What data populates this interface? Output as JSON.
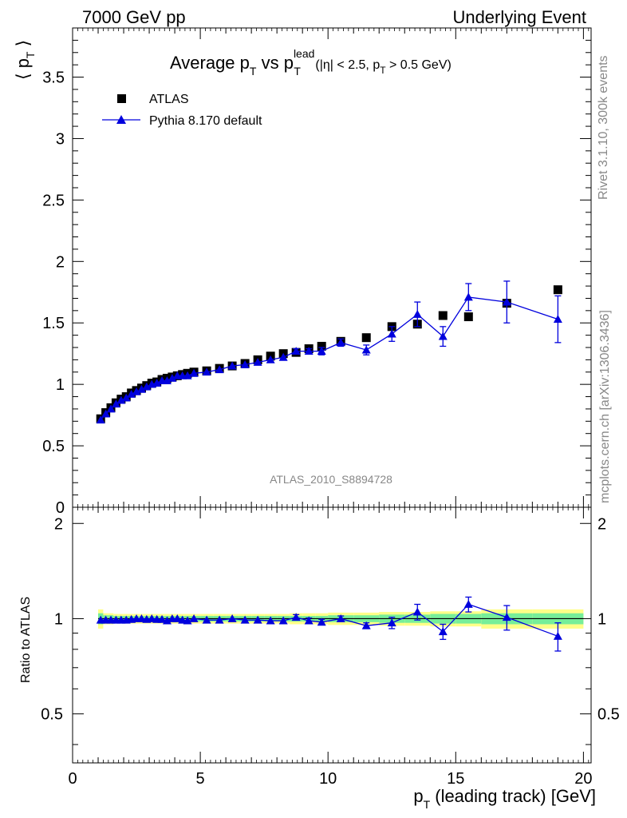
{
  "header": {
    "left": "7000 GeV pp",
    "right": "Underlying Event"
  },
  "side": {
    "rivet": "Rivet 3.1.10,  300k events",
    "source": "mcplots.cern.ch [arXiv:1306.3436]"
  },
  "main": {
    "title_prefix": "Average p",
    "title_sub1": "T",
    "title_mid": " vs p",
    "title_sub2": "T",
    "title_sup": "lead",
    "title_paren_a": " (|η| < 2.5, p",
    "title_paren_sub": "T",
    "title_paren_b": " > 0.5 GeV)",
    "ylabel_a": "⟨ p",
    "ylabel_sub": "T",
    "ylabel_b": " ⟩",
    "watermark": "ATLAS_2010_S8894728",
    "legend": {
      "data_label": "ATLAS",
      "mc_label": "Pythia 8.170 default"
    }
  },
  "ratio": {
    "ylabel": "Ratio to ATLAS"
  },
  "xaxis": {
    "label_a": "p",
    "label_sub": "T",
    "label_b": " (leading track) [GeV]"
  },
  "colors": {
    "data": "#000000",
    "mc": "#0000dd",
    "band_inner": "#77ee99",
    "band_outer": "#ffff88"
  },
  "chart_data": [
    {
      "type": "scatter",
      "xlim": [
        0,
        20.3
      ],
      "ylim": [
        0,
        3.9
      ],
      "x_ticks": [
        0,
        5,
        10,
        15,
        20
      ],
      "y_ticks": [
        0,
        0.5,
        1,
        1.5,
        2,
        2.5,
        3,
        3.5
      ],
      "y_tick_labels": [
        "0",
        "0.5",
        "1",
        "1.5",
        "2",
        "2.5",
        "3",
        "3.5"
      ],
      "series": [
        {
          "name": "ATLAS",
          "x": [
            1.1,
            1.3,
            1.5,
            1.7,
            1.9,
            2.1,
            2.3,
            2.5,
            2.7,
            2.9,
            3.1,
            3.3,
            3.5,
            3.7,
            3.9,
            4.1,
            4.3,
            4.5,
            4.75,
            5.25,
            5.75,
            6.25,
            6.75,
            7.25,
            7.75,
            8.25,
            8.75,
            9.25,
            9.75,
            10.5,
            11.5,
            12.5,
            13.5,
            14.5,
            15.5,
            17.0,
            19.0
          ],
          "y": [
            0.72,
            0.77,
            0.81,
            0.85,
            0.88,
            0.9,
            0.93,
            0.95,
            0.97,
            0.99,
            1.01,
            1.02,
            1.04,
            1.05,
            1.06,
            1.07,
            1.08,
            1.09,
            1.1,
            1.11,
            1.13,
            1.15,
            1.17,
            1.2,
            1.23,
            1.25,
            1.26,
            1.29,
            1.31,
            1.35,
            1.38,
            1.47,
            1.49,
            1.56,
            1.55,
            1.66,
            1.77
          ]
        },
        {
          "name": "Pythia 8.170 default",
          "x": [
            1.1,
            1.3,
            1.5,
            1.7,
            1.9,
            2.1,
            2.3,
            2.5,
            2.7,
            2.9,
            3.1,
            3.3,
            3.5,
            3.7,
            3.9,
            4.1,
            4.3,
            4.5,
            4.75,
            5.25,
            5.75,
            6.25,
            6.75,
            7.25,
            7.75,
            8.25,
            8.75,
            9.25,
            9.75,
            10.5,
            11.5,
            12.5,
            13.5,
            14.5,
            15.5,
            17.0,
            19.0
          ],
          "y": [
            0.71,
            0.76,
            0.8,
            0.84,
            0.87,
            0.89,
            0.92,
            0.94,
            0.96,
            0.98,
            1.0,
            1.01,
            1.03,
            1.03,
            1.05,
            1.07,
            1.07,
            1.07,
            1.09,
            1.1,
            1.12,
            1.15,
            1.16,
            1.18,
            1.2,
            1.22,
            1.27,
            1.27,
            1.27,
            1.34,
            1.28,
            1.41,
            1.57,
            1.39,
            1.71,
            1.67,
            1.53
          ],
          "yerr": [
            0,
            0,
            0,
            0,
            0,
            0,
            0,
            0,
            0,
            0,
            0,
            0,
            0,
            0,
            0,
            0,
            0,
            0,
            0,
            0,
            0,
            0,
            0,
            0,
            0,
            0,
            0.02,
            0.02,
            0.03,
            0.03,
            0.04,
            0.06,
            0.1,
            0.08,
            0.11,
            0.17,
            0.19
          ]
        }
      ]
    },
    {
      "type": "scatter",
      "xlim": [
        0,
        20.3
      ],
      "ylim": [
        0.35,
        2.25
      ],
      "x_ticks": [
        0,
        5,
        10,
        15,
        20
      ],
      "y_ticks": [
        0.5,
        1,
        2
      ],
      "y_tick_labels": [
        "0.5",
        "1",
        "2"
      ],
      "log_y": true,
      "series": [
        {
          "name": "Pythia 8.170 default",
          "x": [
            1.1,
            1.3,
            1.5,
            1.7,
            1.9,
            2.1,
            2.3,
            2.5,
            2.7,
            2.9,
            3.1,
            3.3,
            3.5,
            3.7,
            3.9,
            4.1,
            4.3,
            4.5,
            4.75,
            5.25,
            5.75,
            6.25,
            6.75,
            7.25,
            7.75,
            8.25,
            8.75,
            9.25,
            9.75,
            10.5,
            11.5,
            12.5,
            13.5,
            14.5,
            15.5,
            17.0,
            19.0
          ],
          "y": [
            0.99,
            0.99,
            0.99,
            0.99,
            0.99,
            0.99,
            0.995,
            1.0,
            1.0,
            0.995,
            1.0,
            0.995,
            0.995,
            0.985,
            1.0,
            1.0,
            0.99,
            0.985,
            1.0,
            0.99,
            0.99,
            1.0,
            0.99,
            0.99,
            0.985,
            0.985,
            1.01,
            0.985,
            0.975,
            1.0,
            0.95,
            0.97,
            1.05,
            0.91,
            1.11,
            1.01,
            0.88
          ],
          "yerr": [
            0,
            0,
            0,
            0,
            0,
            0,
            0,
            0,
            0,
            0,
            0,
            0,
            0,
            0,
            0,
            0,
            0,
            0,
            0,
            0,
            0,
            0,
            0,
            0,
            0,
            0,
            0.02,
            0.02,
            0.02,
            0.02,
            0.02,
            0.04,
            0.06,
            0.05,
            0.06,
            0.09,
            0.09
          ]
        }
      ],
      "band_x_edges": [
        1.0,
        1.2,
        1.4,
        1.6,
        1.8,
        2.0,
        2.2,
        2.4,
        2.6,
        2.8,
        3.0,
        3.2,
        3.4,
        3.6,
        3.8,
        4.0,
        4.2,
        4.4,
        4.6,
        5.0,
        5.5,
        6.0,
        6.5,
        7.0,
        7.5,
        8.0,
        8.5,
        9.0,
        9.5,
        10.0,
        11.0,
        12.0,
        13.0,
        14.0,
        15.0,
        16.0,
        18.0,
        20.0
      ],
      "band_inner": [
        0.04,
        0.025,
        0.025,
        0.02,
        0.02,
        0.02,
        0.02,
        0.02,
        0.02,
        0.02,
        0.02,
        0.02,
        0.02,
        0.02,
        0.02,
        0.02,
        0.02,
        0.02,
        0.02,
        0.02,
        0.02,
        0.02,
        0.02,
        0.02,
        0.02,
        0.02,
        0.02,
        0.02,
        0.02,
        0.025,
        0.025,
        0.03,
        0.03,
        0.035,
        0.035,
        0.04,
        0.04
      ],
      "band_outer": [
        0.07,
        0.04,
        0.04,
        0.035,
        0.035,
        0.035,
        0.035,
        0.035,
        0.035,
        0.035,
        0.035,
        0.035,
        0.035,
        0.035,
        0.035,
        0.035,
        0.035,
        0.035,
        0.035,
        0.035,
        0.035,
        0.035,
        0.035,
        0.035,
        0.035,
        0.035,
        0.04,
        0.04,
        0.04,
        0.045,
        0.045,
        0.05,
        0.05,
        0.055,
        0.055,
        0.07,
        0.07
      ]
    }
  ]
}
